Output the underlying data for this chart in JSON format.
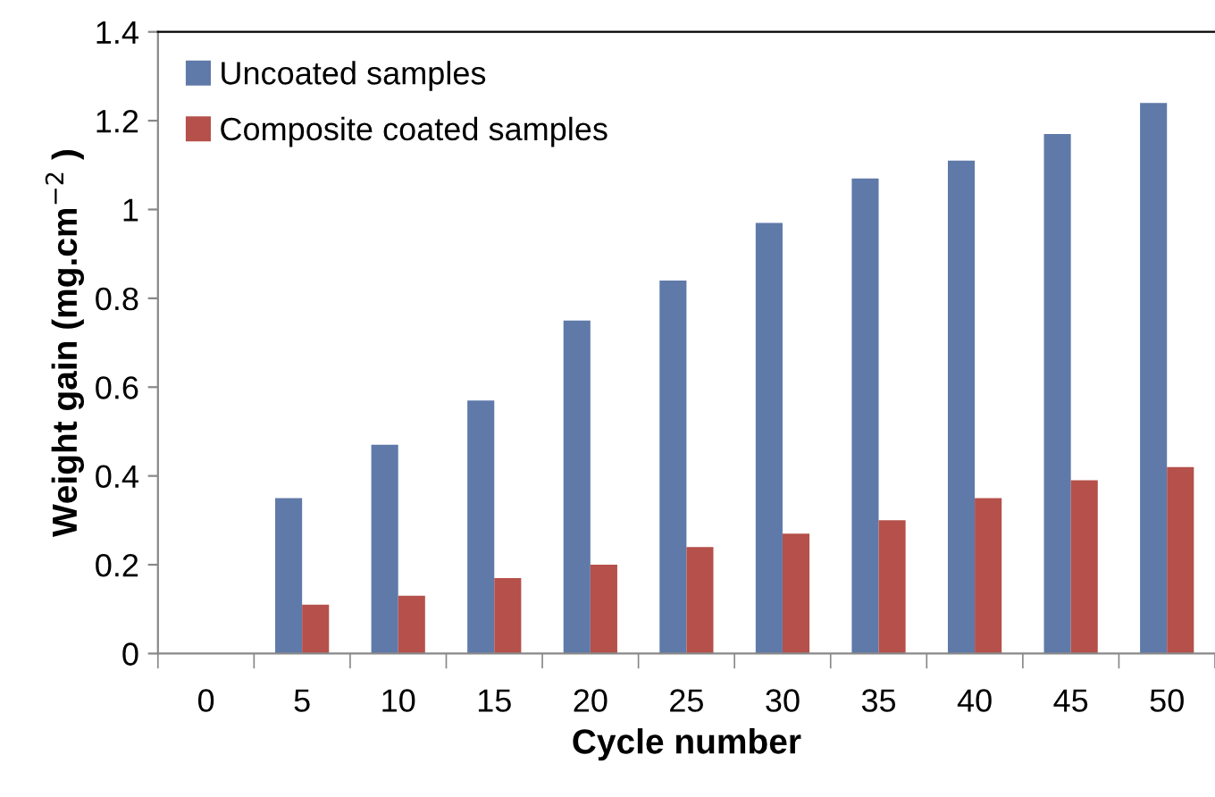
{
  "chart_data": {
    "type": "bar",
    "xlabel": "Cycle number",
    "ylabel": "Weight gain (mg.cm$^{−2}$ )",
    "categories": [
      "0",
      "5",
      "10",
      "15",
      "20",
      "25",
      "30",
      "35",
      "40",
      "45",
      "50"
    ],
    "series": [
      {
        "name": "Uncoated samples",
        "color": "#5f79a9",
        "values": [
          0,
          0.35,
          0.47,
          0.57,
          0.75,
          0.84,
          0.97,
          1.07,
          1.11,
          1.17,
          1.24
        ]
      },
      {
        "name": "Composite coated samples",
        "color": "#b5504b",
        "values": [
          0,
          0.11,
          0.13,
          0.17,
          0.2,
          0.24,
          0.27,
          0.3,
          0.35,
          0.39,
          0.42
        ]
      }
    ],
    "ylim": [
      0,
      1.4
    ],
    "yticks": [
      0,
      0.2,
      0.4,
      0.6,
      0.8,
      1,
      1.2,
      1.4
    ],
    "legend": "top left",
    "grid": false
  }
}
